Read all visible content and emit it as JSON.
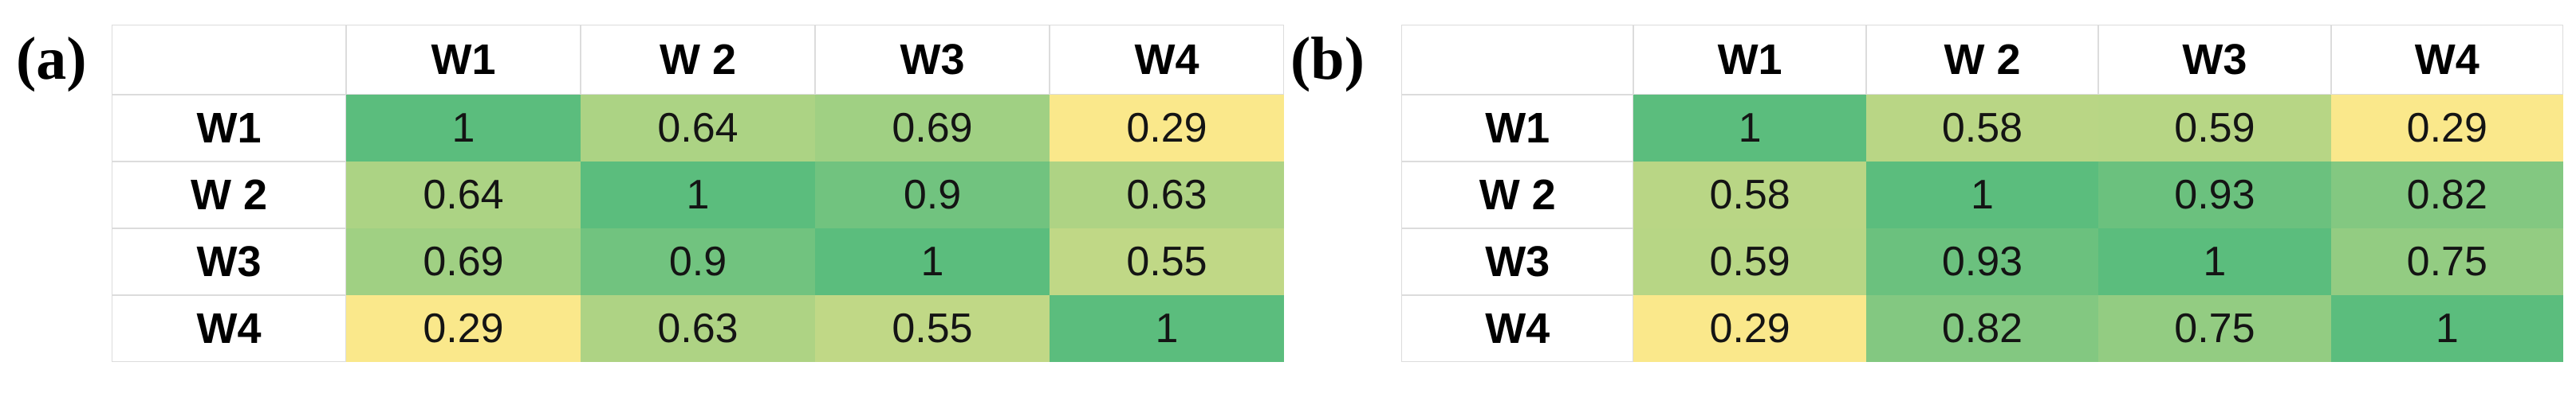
{
  "styles": {
    "background": "#ffffff",
    "grid_line_color": "#dcdcdc",
    "text_color": "#141414"
  },
  "chart_data": [
    {
      "type": "heatmap",
      "panel_label": "(a)",
      "corner_label": "",
      "x_labels": [
        "W1",
        "W 2",
        "W3",
        "W4"
      ],
      "y_labels": [
        "W1",
        "W 2",
        "W3",
        "W4"
      ],
      "values": [
        [
          1,
          0.64,
          0.69,
          0.29
        ],
        [
          0.64,
          1,
          0.9,
          0.63
        ],
        [
          0.69,
          0.9,
          1,
          0.55
        ],
        [
          0.29,
          0.63,
          0.55,
          1
        ]
      ],
      "color_scale": {
        "min_value": 0.29,
        "min_color": "#FAE88B",
        "max_value": 1,
        "max_color": "#5BBD7D"
      },
      "legend_position": "none",
      "grid": false
    },
    {
      "type": "heatmap",
      "panel_label": "(b)",
      "corner_label": "",
      "x_labels": [
        "W1",
        "W 2",
        "W3",
        "W4"
      ],
      "y_labels": [
        "W1",
        "W 2",
        "W3",
        "W4"
      ],
      "values": [
        [
          1,
          0.58,
          0.59,
          0.29
        ],
        [
          0.58,
          1,
          0.93,
          0.82
        ],
        [
          0.59,
          0.93,
          1,
          0.75
        ],
        [
          0.29,
          0.82,
          0.75,
          1
        ]
      ],
      "color_scale": {
        "min_value": 0.29,
        "min_color": "#FAE88B",
        "max_value": 1,
        "max_color": "#5BBD7D"
      },
      "legend_position": "none",
      "grid": false
    }
  ]
}
